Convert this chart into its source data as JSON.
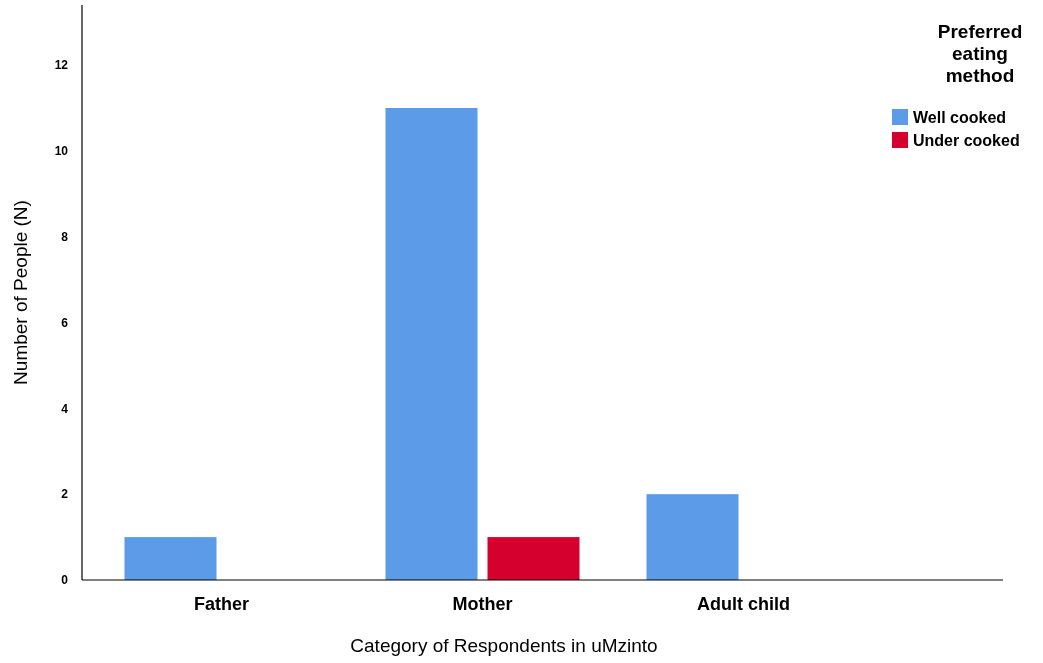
{
  "chart_data": {
    "type": "bar",
    "xlabel": "Category of Respondents in uMzinto",
    "ylabel": "Number of People (N)",
    "legend_title": "Preferred eating method",
    "categories": [
      "Father",
      "Mother",
      "Adult child"
    ],
    "series": [
      {
        "name": "Well cooked",
        "color": "#5b9be8",
        "values": [
          1,
          11,
          2
        ]
      },
      {
        "name": "Under cooked",
        "color": "#d6002f",
        "values": [
          null,
          1,
          null
        ]
      }
    ],
    "ylim": [
      0,
      13.4
    ],
    "yticks": [
      0,
      2,
      4,
      6,
      8,
      10,
      12
    ],
    "grid": false,
    "legend": "top right"
  }
}
